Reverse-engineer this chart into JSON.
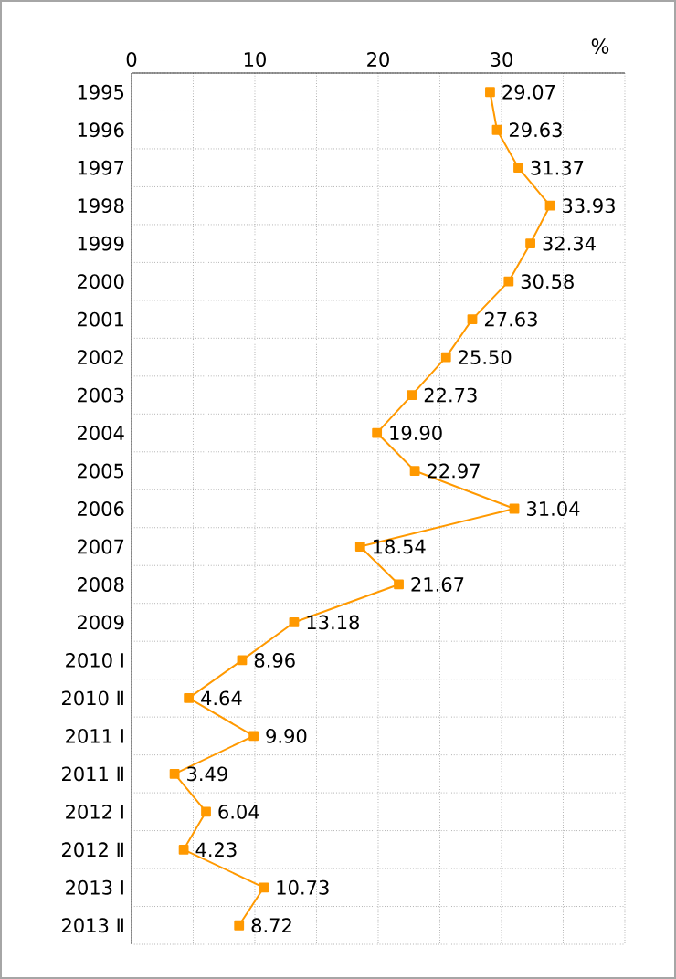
{
  "chart_data": {
    "type": "line",
    "orientation": "horizontal",
    "xlabel": "%",
    "categories": [
      "1995",
      "1996",
      "1997",
      "1998",
      "1999",
      "2000",
      "2001",
      "2002",
      "2003",
      "2004",
      "2005",
      "2006",
      "2007",
      "2008",
      "2009",
      "2010 Ⅰ",
      "2010 Ⅱ",
      "2011 Ⅰ",
      "2011 Ⅱ",
      "2012 Ⅰ",
      "2012 Ⅱ",
      "2013 Ⅰ",
      "2013 Ⅱ"
    ],
    "values": [
      29.07,
      29.63,
      31.37,
      33.93,
      32.34,
      30.58,
      27.63,
      25.5,
      22.73,
      19.9,
      22.97,
      31.04,
      18.54,
      21.67,
      13.18,
      8.96,
      4.64,
      9.9,
      3.49,
      6.04,
      4.23,
      10.73,
      8.72
    ],
    "value_labels": [
      "29.07",
      "29.63",
      "31.37",
      "33.93",
      "32.34",
      "30.58",
      "27.63",
      "25.50",
      "22.73",
      "19.90",
      "22.97",
      "31.04",
      "18.54",
      "21.67",
      "13.18",
      "8.96",
      "4.64",
      "9.90",
      "3.49",
      "6.04",
      "4.23",
      "10.73",
      "8.72"
    ],
    "color": "#ff9900",
    "marker": "square",
    "line_style": "solid",
    "xlim": [
      0,
      40
    ],
    "xticks": [
      0,
      {
        "value": 5,
        "label": null
      },
      10,
      {
        "value": 15,
        "label": null
      },
      20,
      {
        "value": 25,
        "label": null
      },
      30,
      {
        "value": 35,
        "label": null
      },
      {
        "value": 40,
        "label": null
      }
    ],
    "grid": true
  }
}
